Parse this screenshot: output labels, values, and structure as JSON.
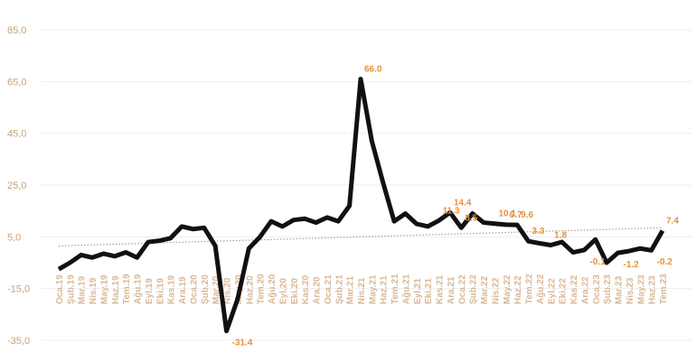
{
  "chart_data": {
    "type": "line",
    "categories": [
      "Oca.19",
      "Şub.19",
      "Mar.19",
      "Nis.19",
      "May.19",
      "Haz.19",
      "Tem.19",
      "Ağu.19",
      "Eyl.19",
      "Eki.19",
      "Kas.19",
      "Ara.19",
      "Oca.20",
      "Şub.20",
      "Mar.20",
      "Nis.20",
      "May.20",
      "Haz.20",
      "Tem.20",
      "Ağu.20",
      "Eyl.20",
      "Eki.20",
      "Kas.20",
      "Ara.20",
      "Oca.21",
      "Şub.21",
      "Mar.21",
      "Nis.21",
      "May.21",
      "Haz.21",
      "Tem.21",
      "Ağu.21",
      "Eyl.21",
      "Eki.21",
      "Kas.21",
      "Ara.21",
      "Oca.22",
      "Şub.22",
      "Mar.22",
      "Nis.22",
      "May.22",
      "Haz.22",
      "Tem.22",
      "Ağu.22",
      "Eyl.22",
      "Eki.22",
      "Kas.22",
      "Ara.22",
      "Oca.23",
      "Şub.23",
      "Mar.23",
      "Nis.23",
      "May.23",
      "Haz.23",
      "Tem.23"
    ],
    "values": [
      -7.5,
      -5,
      -2,
      -3,
      -1.5,
      -2.5,
      -1,
      -3,
      3,
      3.5,
      4.5,
      9,
      8,
      8.5,
      1.5,
      -31.4,
      -19,
      0.5,
      5,
      11,
      9,
      11.5,
      12,
      10.5,
      12.5,
      11,
      17,
      66,
      42,
      26,
      11,
      14,
      10,
      9,
      11.3,
      14.4,
      8.5,
      14,
      10.5,
      10.1,
      9.7,
      9.6,
      3.3,
      2.5,
      1.8,
      3,
      -1,
      -0.1,
      4,
      -5,
      -1.2,
      -0.5,
      0.5,
      -0.2,
      7.4
    ],
    "value_labels": [
      null,
      null,
      null,
      null,
      null,
      null,
      null,
      null,
      null,
      null,
      null,
      null,
      null,
      null,
      null,
      "-31.4",
      null,
      null,
      null,
      null,
      null,
      null,
      null,
      null,
      null,
      null,
      null,
      "66.0",
      null,
      null,
      null,
      null,
      null,
      null,
      "11.3",
      "14.4",
      "8.5",
      null,
      null,
      "10.1",
      "9.7",
      "9.6",
      "3.3",
      null,
      "1.8",
      null,
      null,
      "-0.1",
      null,
      null,
      "-1.2",
      null,
      null,
      "-0.2",
      "7.4"
    ],
    "color": "#111111",
    "label_color": "#e8923a",
    "trendline": [
      1.5,
      8.5
    ],
    "ylim": [
      -35,
      85
    ],
    "yticks": [
      {
        "value": -35,
        "label": "-35,0"
      },
      {
        "value": -15,
        "label": "-15,0"
      },
      {
        "value": 5,
        "label": "5,0"
      },
      {
        "value": 25,
        "label": "25,0"
      },
      {
        "value": 45,
        "label": "45,0"
      },
      {
        "value": 65,
        "label": "65,0"
      },
      {
        "value": 85,
        "label": "85,0"
      }
    ],
    "grid": true
  }
}
